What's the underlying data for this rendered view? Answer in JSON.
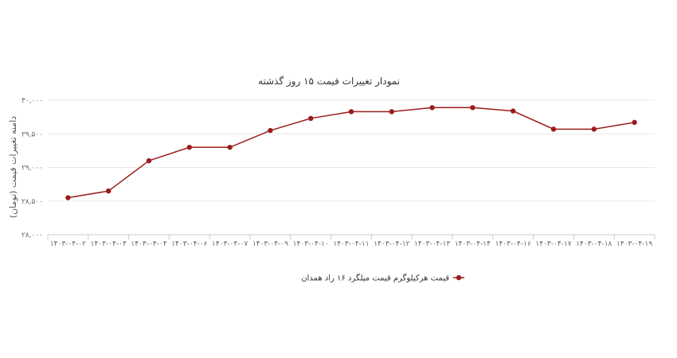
{
  "chart_data": {
    "type": "line",
    "title": "نمودار تغییرات قیمت ۱۵ روز گذشته",
    "ylabel": "دامنه تغییرات قیمت (تومان)",
    "xlabel": "",
    "ylim": [
      28000,
      30000
    ],
    "yticks": [
      28000,
      28500,
      29000,
      29500,
      30000
    ],
    "ytick_labels": [
      "۲۸,۰۰۰",
      "۲۸,۵۰۰",
      "۲۹,۰۰۰",
      "۲۹,۵۰۰",
      "۳۰,۰۰۰"
    ],
    "categories": [
      "۱۴۰۳-۰۴-۰۲",
      "۱۴۰۳-۰۴-۰۳",
      "۱۴۰۳-۰۴-۰۴",
      "۱۴۰۳-۰۴-۰۶",
      "۱۴۰۳-۰۴-۰۷",
      "۱۴۰۳-۰۴-۰۹",
      "۱۴۰۳-۰۴-۱۰",
      "۱۴۰۳-۰۴-۱۱",
      "۱۴۰۳-۰۴-۱۲",
      "۱۴۰۳-۰۴-۱۳",
      "۱۴۰۳-۰۴-۱۴",
      "۱۴۰۳-۰۴-۱۶",
      "۱۴۰۳-۰۴-۱۷",
      "۱۴۰۳-۰۴-۱۸",
      "۱۴۰۳-۰۴-۱۹"
    ],
    "series": [
      {
        "name": "قیمت هرکیلوگرم قیمت میلگرد ۱۶ راد همدان",
        "color": "#9b1c1c",
        "values": [
          28550,
          28650,
          29100,
          29300,
          29300,
          29550,
          29730,
          29830,
          29830,
          29890,
          29890,
          29840,
          29570,
          29570,
          29670
        ]
      }
    ],
    "grid": true,
    "legend": "bottom-center"
  }
}
